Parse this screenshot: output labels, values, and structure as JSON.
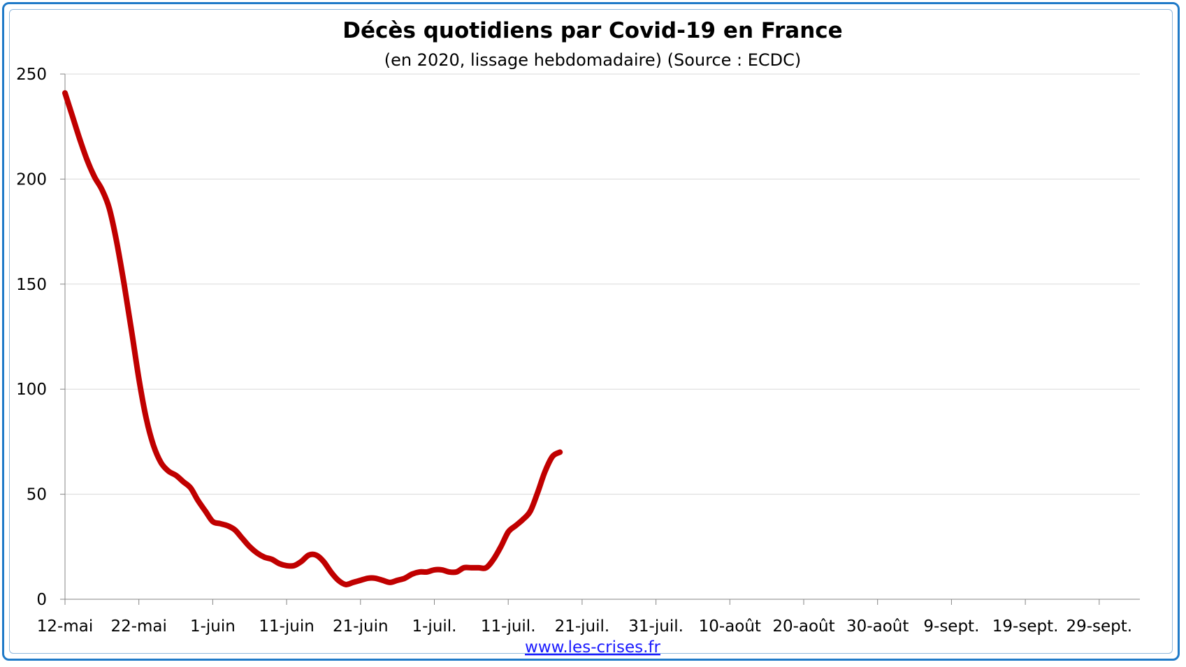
{
  "chart_data": {
    "type": "line",
    "title": "Décès quotidiens par Covid-19 en France",
    "subtitle": "(en 2020, lissage hebdomadaire) (Source : ECDC)",
    "source_link": "www.les-crises.fr",
    "x_tick_labels": [
      "12-mai",
      "22-mai",
      "1-juin",
      "11-juin",
      "21-juin",
      "1-juil.",
      "11-juil.",
      "21-juil.",
      "31-juil.",
      "10-août",
      "20-août",
      "30-août",
      "9-sept.",
      "19-sept.",
      "29-sept."
    ],
    "x_tick_step_days": 10,
    "y_ticks": [
      0,
      50,
      100,
      150,
      200,
      250
    ],
    "ylim": [
      0,
      250
    ],
    "grid": true,
    "line_color": "#c00000",
    "series": [
      {
        "values": [
          241,
          230,
          219,
          209,
          201,
          195,
          186,
          170,
          150,
          128,
          105,
          86,
          73,
          65,
          61,
          59,
          56,
          53,
          47,
          42,
          37,
          36,
          35,
          33,
          29,
          25,
          22,
          20,
          19,
          17,
          16,
          16,
          18,
          21,
          21,
          18,
          13,
          9,
          7,
          8,
          9,
          10,
          10,
          9,
          8,
          9,
          10,
          12,
          13,
          13,
          14,
          14,
          13,
          13,
          15,
          15,
          15,
          15,
          19,
          25,
          32,
          35,
          38,
          42,
          51,
          61,
          68,
          70
        ]
      }
    ]
  }
}
